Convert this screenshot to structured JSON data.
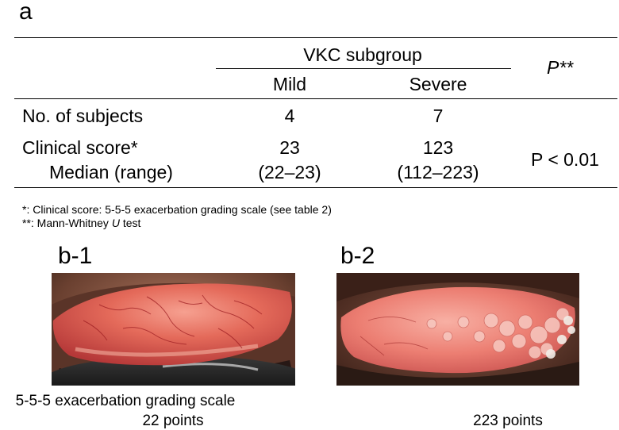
{
  "panel_a": {
    "label": "a",
    "group_header": "VKC subgroup",
    "col_mild": "Mild",
    "col_severe": "Severe",
    "col_p": "P**",
    "rows": {
      "subjects_label": "No. of subjects",
      "subjects_mild": "4",
      "subjects_severe": "7",
      "score_label": "Clinical score*",
      "score_sub_label": "Median (range)",
      "score_mild_median": "23",
      "score_mild_range": "(22–23)",
      "score_severe_median": "123",
      "score_severe_range": "(112–223)",
      "p_value": "P < 0.01"
    },
    "footnotes": {
      "note1": "*: Clinical score: 5-5-5 exacerbation grading scale (see table 2)",
      "note2_prefix": "**: Mann-Whitney ",
      "note2_italic": "U",
      "note2_suffix": " test"
    }
  },
  "panel_b1": {
    "label": "b-1",
    "caption_line1": "5-5-5 exacerbation grading scale",
    "caption_line2": "22 points"
  },
  "panel_b2": {
    "label": "b-2",
    "caption": "223 points"
  }
}
